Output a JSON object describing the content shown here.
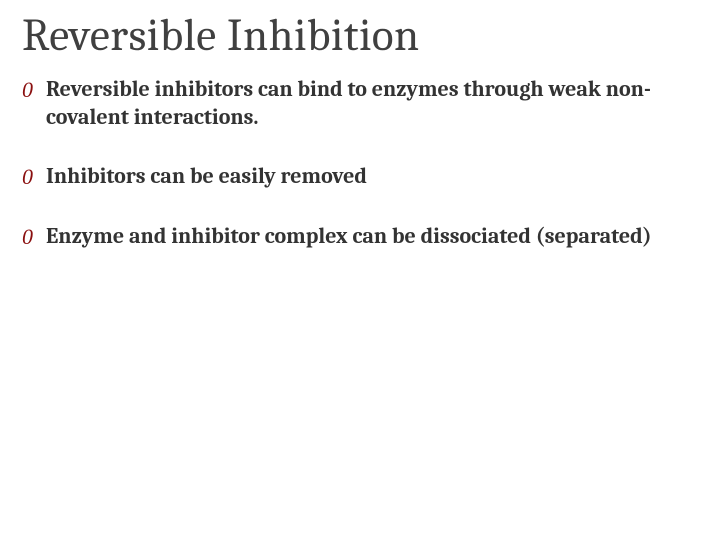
{
  "slide": {
    "title": "Reversible Inhibition",
    "title_color": "#404040",
    "title_fontsize": 45,
    "background_color": "#ffffff",
    "bullet_marker": "0",
    "bullet_marker_color": "#8a0f0f",
    "bullet_marker_style": "italic",
    "body_fontsize": 22,
    "body_color": "#333333",
    "body_fontweight": 600,
    "bullets": [
      {
        "text": "Reversible inhibitors can bind to enzymes through weak non-covalent interactions."
      },
      {
        "text": "Inhibitors can be easily removed"
      },
      {
        "text": "Enzyme and inhibitor complex can be dissociated (separated)"
      }
    ]
  }
}
